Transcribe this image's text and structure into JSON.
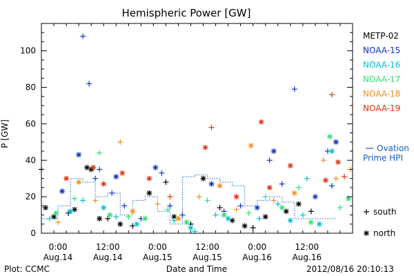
{
  "chart_data": {
    "type": "scatter",
    "title": "Hemispheric Power [GW]",
    "xlabel": "Date and Time",
    "ylabel": "P [GW]",
    "ylim": [
      0,
      115
    ],
    "y_ticks": [
      0,
      20,
      40,
      60,
      80,
      100
    ],
    "xlim": [
      "2012-08-13T20:00",
      "2012-08-16T23:00"
    ],
    "x_ticks": [
      {
        "t": "2012-08-14T00:00",
        "line1": "0:00",
        "line2": "Aug.14"
      },
      {
        "t": "2012-08-14T12:00",
        "line1": "12:00",
        "line2": "Aug.14"
      },
      {
        "t": "2012-08-15T00:00",
        "line1": "0:00",
        "line2": "Aug.15"
      },
      {
        "t": "2012-08-15T12:00",
        "line1": "12:00",
        "line2": "Aug.15"
      },
      {
        "t": "2012-08-16T00:00",
        "line1": "0:00",
        "line2": "Aug.16"
      },
      {
        "t": "2012-08-16T12:00",
        "line1": "12:00",
        "line2": "Aug.16"
      }
    ],
    "legend_position": "right",
    "marker_legend": {
      "plus": "south",
      "star": "north"
    },
    "series": [
      {
        "name": "METP-02",
        "color": "#000000",
        "points": [
          {
            "t": "2012-08-13T20:00",
            "y": 35,
            "m": "plus"
          },
          {
            "t": "2012-08-13T21:00",
            "y": 14,
            "m": "star"
          },
          {
            "t": "2012-08-13T23:00",
            "y": 9,
            "m": "star"
          },
          {
            "t": "2012-08-14T02:30",
            "y": 11,
            "m": "plus"
          },
          {
            "t": "2012-08-14T04:00",
            "y": 13,
            "m": "star"
          },
          {
            "t": "2012-08-14T07:00",
            "y": 36,
            "m": "star"
          },
          {
            "t": "2012-08-14T08:00",
            "y": 35,
            "m": "star"
          },
          {
            "t": "2012-08-14T10:00",
            "y": 8,
            "m": "star"
          },
          {
            "t": "2012-08-14T12:00",
            "y": 8,
            "m": "plus"
          },
          {
            "t": "2012-08-14T15:00",
            "y": 5,
            "m": "star"
          },
          {
            "t": "2012-08-14T18:00",
            "y": 4,
            "m": "plus"
          },
          {
            "t": "2012-08-14T22:00",
            "y": 22,
            "m": "star"
          },
          {
            "t": "2012-08-15T02:00",
            "y": 28,
            "m": "plus"
          },
          {
            "t": "2012-08-15T04:00",
            "y": 9,
            "m": "star"
          },
          {
            "t": "2012-08-15T08:00",
            "y": 5,
            "m": "plus"
          },
          {
            "t": "2012-08-15T11:00",
            "y": 30,
            "m": "star"
          },
          {
            "t": "2012-08-15T15:00",
            "y": 14,
            "m": "plus"
          },
          {
            "t": "2012-08-15T18:00",
            "y": 7,
            "m": "star"
          },
          {
            "t": "2012-08-15T21:00",
            "y": 4,
            "m": "star"
          },
          {
            "t": "2012-08-15T23:00",
            "y": 3,
            "m": "plus"
          },
          {
            "t": "2012-08-16T02:00",
            "y": 9,
            "m": "star"
          },
          {
            "t": "2012-08-16T07:00",
            "y": 12,
            "m": "star"
          },
          {
            "t": "2012-08-16T10:00",
            "y": 16,
            "m": "star"
          },
          {
            "t": "2012-08-16T13:00",
            "y": 12,
            "m": "plus"
          }
        ]
      },
      {
        "name": "NOAA-15",
        "color": "#1030c8",
        "points": [
          {
            "t": "2012-08-14T01:00",
            "y": 23,
            "m": "star"
          },
          {
            "t": "2012-08-14T05:00",
            "y": 43,
            "m": "star"
          },
          {
            "t": "2012-08-14T06:00",
            "y": 108,
            "m": "plus"
          },
          {
            "t": "2012-08-14T07:30",
            "y": 82,
            "m": "plus"
          },
          {
            "t": "2012-08-14T09:00",
            "y": 30,
            "m": "plus"
          },
          {
            "t": "2012-08-14T10:00",
            "y": 35,
            "m": "plus"
          },
          {
            "t": "2012-08-14T13:00",
            "y": 22,
            "m": "plus"
          },
          {
            "t": "2012-08-14T14:00",
            "y": 31,
            "m": "star"
          },
          {
            "t": "2012-08-14T16:00",
            "y": 15,
            "m": "plus"
          },
          {
            "t": "2012-08-14T20:00",
            "y": 8,
            "m": "plus"
          },
          {
            "t": "2012-08-14T23:30",
            "y": 36,
            "m": "star"
          },
          {
            "t": "2012-08-15T01:00",
            "y": 33,
            "m": "plus"
          },
          {
            "t": "2012-08-15T03:00",
            "y": 15,
            "m": "plus"
          },
          {
            "t": "2012-08-15T06:00",
            "y": 10,
            "m": "plus"
          },
          {
            "t": "2012-08-15T13:00",
            "y": 27,
            "m": "star"
          },
          {
            "t": "2012-08-15T16:00",
            "y": 12,
            "m": "plus"
          },
          {
            "t": "2012-08-15T20:00",
            "y": 15,
            "m": "plus"
          },
          {
            "t": "2012-08-16T00:00",
            "y": 14,
            "m": "star"
          },
          {
            "t": "2012-08-16T03:00",
            "y": 40,
            "m": "plus"
          },
          {
            "t": "2012-08-16T04:00",
            "y": 45,
            "m": "star"
          },
          {
            "t": "2012-08-16T06:00",
            "y": 27,
            "m": "plus"
          },
          {
            "t": "2012-08-16T09:00",
            "y": 79,
            "m": "plus"
          },
          {
            "t": "2012-08-16T14:00",
            "y": 20,
            "m": "star"
          },
          {
            "t": "2012-08-16T17:00",
            "y": 45,
            "m": "plus"
          },
          {
            "t": "2012-08-16T18:00",
            "y": 26,
            "m": "plus"
          },
          {
            "t": "2012-08-16T19:00",
            "y": 50,
            "m": "star"
          }
        ]
      },
      {
        "name": "NOAA-16",
        "color": "#00c0d0",
        "points": [
          {
            "t": "2012-08-13T22:00",
            "y": 8,
            "m": "plus"
          },
          {
            "t": "2012-08-14T03:00",
            "y": 12,
            "m": "star"
          },
          {
            "t": "2012-08-14T06:00",
            "y": 18,
            "m": "plus"
          },
          {
            "t": "2012-08-14T11:00",
            "y": 14,
            "m": "star"
          },
          {
            "t": "2012-08-14T14:00",
            "y": 9,
            "m": "plus"
          },
          {
            "t": "2012-08-14T19:00",
            "y": 5,
            "m": "star"
          },
          {
            "t": "2012-08-15T04:00",
            "y": 7,
            "m": "plus"
          },
          {
            "t": "2012-08-15T08:00",
            "y": 3,
            "m": "star"
          },
          {
            "t": "2012-08-15T09:00",
            "y": 1,
            "m": "plus"
          },
          {
            "t": "2012-08-15T14:00",
            "y": 10,
            "m": "plus"
          },
          {
            "t": "2012-08-15T17:00",
            "y": 8,
            "m": "star"
          },
          {
            "t": "2012-08-16T00:30",
            "y": 8,
            "m": "plus"
          },
          {
            "t": "2012-08-16T05:00",
            "y": 16,
            "m": "plus"
          },
          {
            "t": "2012-08-16T08:00",
            "y": 7,
            "m": "star"
          },
          {
            "t": "2012-08-16T11:00",
            "y": 10,
            "m": "plus"
          },
          {
            "t": "2012-08-16T12:00",
            "y": 30,
            "m": "plus"
          },
          {
            "t": "2012-08-16T15:00",
            "y": 5,
            "m": "star"
          },
          {
            "t": "2012-08-16T18:00",
            "y": 45,
            "m": "star"
          }
        ]
      },
      {
        "name": "NOAA-17",
        "color": "#30e070",
        "points": [
          {
            "t": "2012-08-13T23:30",
            "y": 11,
            "m": "star"
          },
          {
            "t": "2012-08-14T04:00",
            "y": 19,
            "m": "plus"
          },
          {
            "t": "2012-08-14T10:00",
            "y": 44,
            "m": "plus"
          },
          {
            "t": "2012-08-14T12:30",
            "y": 10,
            "m": "star"
          },
          {
            "t": "2012-08-14T17:00",
            "y": 9,
            "m": "plus"
          },
          {
            "t": "2012-08-14T21:00",
            "y": 8,
            "m": "star"
          },
          {
            "t": "2012-08-15T02:30",
            "y": 13,
            "m": "plus"
          },
          {
            "t": "2012-08-15T07:00",
            "y": 6,
            "m": "star"
          },
          {
            "t": "2012-08-15T12:00",
            "y": 18,
            "m": "plus"
          },
          {
            "t": "2012-08-15T16:00",
            "y": 10,
            "m": "star"
          },
          {
            "t": "2012-08-15T22:00",
            "y": 11,
            "m": "plus"
          },
          {
            "t": "2012-08-16T02:00",
            "y": 20,
            "m": "plus"
          },
          {
            "t": "2012-08-16T06:00",
            "y": 14,
            "m": "star"
          },
          {
            "t": "2012-08-16T10:00",
            "y": 25,
            "m": "plus"
          },
          {
            "t": "2012-08-16T13:00",
            "y": 6,
            "m": "star"
          },
          {
            "t": "2012-08-16T17:30",
            "y": 53,
            "m": "star"
          },
          {
            "t": "2012-08-16T20:00",
            "y": 14,
            "m": "plus"
          },
          {
            "t": "2012-08-16T22:00",
            "y": 19,
            "m": "star"
          }
        ]
      },
      {
        "name": "NOAA-18",
        "color": "#f09020",
        "points": [
          {
            "t": "2012-08-14T00:00",
            "y": 6,
            "m": "plus"
          },
          {
            "t": "2012-08-14T05:00",
            "y": 28,
            "m": "star"
          },
          {
            "t": "2012-08-14T09:00",
            "y": 18,
            "m": "plus"
          },
          {
            "t": "2012-08-14T15:00",
            "y": 50,
            "m": "plus"
          },
          {
            "t": "2012-08-14T18:00",
            "y": 12,
            "m": "star"
          },
          {
            "t": "2012-08-15T00:00",
            "y": 16,
            "m": "plus"
          },
          {
            "t": "2012-08-15T05:00",
            "y": 8,
            "m": "star"
          },
          {
            "t": "2012-08-15T10:00",
            "y": 20,
            "m": "plus"
          },
          {
            "t": "2012-08-15T15:00",
            "y": 26,
            "m": "star"
          },
          {
            "t": "2012-08-15T19:00",
            "y": 13,
            "m": "plus"
          },
          {
            "t": "2012-08-15T22:30",
            "y": 48,
            "m": "star"
          },
          {
            "t": "2012-08-16T04:00",
            "y": 18,
            "m": "plus"
          },
          {
            "t": "2012-08-16T09:00",
            "y": 22,
            "m": "star"
          },
          {
            "t": "2012-08-16T16:00",
            "y": 40,
            "m": "plus"
          },
          {
            "t": "2012-08-16T19:00",
            "y": 30,
            "m": "plus"
          },
          {
            "t": "2012-08-16T22:30",
            "y": 35,
            "m": "plus"
          }
        ]
      },
      {
        "name": "NOAA-19",
        "color": "#e03010",
        "points": [
          {
            "t": "2012-08-14T02:00",
            "y": 30,
            "m": "star"
          },
          {
            "t": "2012-08-14T08:30",
            "y": 36,
            "m": "star"
          },
          {
            "t": "2012-08-14T11:00",
            "y": 27,
            "m": "star"
          },
          {
            "t": "2012-08-14T15:30",
            "y": 33,
            "m": "star"
          },
          {
            "t": "2012-08-14T22:00",
            "y": 30,
            "m": "star"
          },
          {
            "t": "2012-08-15T03:00",
            "y": 20,
            "m": "plus"
          },
          {
            "t": "2012-08-15T11:30",
            "y": 47,
            "m": "star"
          },
          {
            "t": "2012-08-15T13:00",
            "y": 58,
            "m": "plus"
          },
          {
            "t": "2012-08-15T19:00",
            "y": 20,
            "m": "star"
          },
          {
            "t": "2012-08-16T01:00",
            "y": 61,
            "m": "star"
          },
          {
            "t": "2012-08-16T03:00",
            "y": 25,
            "m": "star"
          },
          {
            "t": "2012-08-16T08:00",
            "y": 37,
            "m": "star"
          },
          {
            "t": "2012-08-16T16:30",
            "y": 29,
            "m": "star"
          },
          {
            "t": "2012-08-16T18:00",
            "y": 76,
            "m": "plus"
          },
          {
            "t": "2012-08-16T19:30",
            "y": 39,
            "m": "star"
          },
          {
            "t": "2012-08-16T21:00",
            "y": 31,
            "m": "plus"
          }
        ]
      }
    ],
    "ovation": {
      "name": "Ovation Prime HPI",
      "legend_lines": [
        "Ovation",
        "Prime HPI"
      ],
      "color": "#1060c0",
      "points": [
        [
          "2012-08-13T20:00",
          8
        ],
        [
          "2012-08-14T00:00",
          8
        ],
        [
          "2012-08-14T03:00",
          15
        ],
        [
          "2012-08-14T06:00",
          30
        ],
        [
          "2012-08-14T09:00",
          28
        ],
        [
          "2012-08-14T12:00",
          20
        ],
        [
          "2012-08-14T15:00",
          22
        ],
        [
          "2012-08-14T18:00",
          10
        ],
        [
          "2012-08-14T21:00",
          18
        ],
        [
          "2012-08-15T00:00",
          20
        ],
        [
          "2012-08-15T03:00",
          12
        ],
        [
          "2012-08-15T06:00",
          5
        ],
        [
          "2012-08-15T09:00",
          31
        ],
        [
          "2012-08-15T12:00",
          32
        ],
        [
          "2012-08-15T15:00",
          30
        ],
        [
          "2012-08-15T18:00",
          28
        ],
        [
          "2012-08-15T21:00",
          26
        ],
        [
          "2012-08-16T00:00",
          15
        ],
        [
          "2012-08-16T03:00",
          18
        ],
        [
          "2012-08-16T06:00",
          20
        ],
        [
          "2012-08-16T09:00",
          17
        ],
        [
          "2012-08-16T12:00",
          8
        ],
        [
          "2012-08-16T15:00",
          8
        ],
        [
          "2012-08-16T19:00",
          8
        ]
      ]
    }
  },
  "footer": {
    "plot_label": "Plot: CCMC",
    "timestamp": "2012/08/16 20:10:13"
  }
}
